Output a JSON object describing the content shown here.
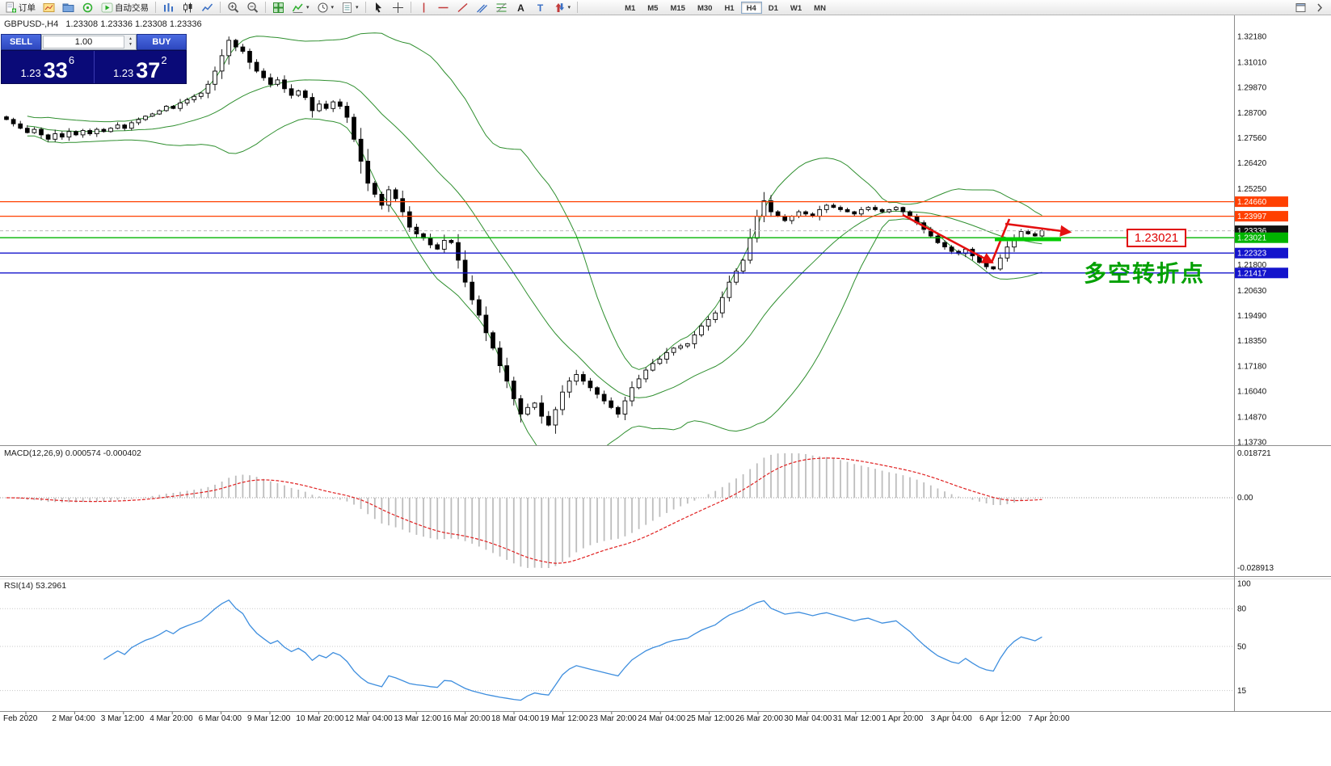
{
  "toolbar": {
    "items": [
      {
        "name": "new-order",
        "label": "订单"
      },
      {
        "name": "chart-wizard"
      },
      {
        "name": "profiles"
      },
      {
        "name": "alerts"
      },
      {
        "name": "autotrading",
        "label": "自动交易"
      },
      {
        "sep": true
      },
      {
        "name": "bar-chart"
      },
      {
        "name": "candlestick-chart"
      },
      {
        "name": "line-chart"
      },
      {
        "sep": true
      },
      {
        "name": "zoom-in"
      },
      {
        "name": "zoom-out"
      },
      {
        "sep": true
      },
      {
        "name": "tile-windows"
      },
      {
        "name": "indicators",
        "dropdown": true
      },
      {
        "name": "periods",
        "dropdown": true
      },
      {
        "name": "templates",
        "dropdown": true
      },
      {
        "sep": true
      },
      {
        "name": "cursor"
      },
      {
        "name": "crosshair"
      },
      {
        "sep": true
      },
      {
        "name": "vertical-line"
      },
      {
        "name": "horizontal-line"
      },
      {
        "name": "trendline"
      },
      {
        "name": "equidistant-channel"
      },
      {
        "name": "fibonacci"
      },
      {
        "name": "text"
      },
      {
        "name": "text-label"
      },
      {
        "name": "arrow-tools",
        "dropdown": true
      },
      {
        "sep": true
      }
    ],
    "timeframes": [
      "M1",
      "M5",
      "M15",
      "M30",
      "H1",
      "H4",
      "D1",
      "W1",
      "MN"
    ],
    "active_timeframe": "H4"
  },
  "chart_header": "GBPUSD-,H4   1.23308 1.23336 1.23308 1.23336",
  "trade_panel": {
    "sell_label": "SELL",
    "buy_label": "BUY",
    "volume": "1.00",
    "sell_price": {
      "prefix": "1.23",
      "big": "33",
      "sup": "6"
    },
    "buy_price": {
      "prefix": "1.23",
      "big": "37",
      "sup": "2"
    }
  },
  "annotations": {
    "price_label": "1.23021",
    "turning_point": "多空转折点"
  },
  "macd_label": "MACD(12,26,9) 0.000574 -0.000402",
  "rsi_label": "RSI(14) 53.2961",
  "colors": {
    "accent_blue": "#3556d4",
    "panel_navy": "#0a0a78",
    "level_orange": "#ff4000",
    "level_green": "#00b400",
    "level_blue": "#1414cc",
    "current_black": "#111111",
    "bollinger": "#2f8f2f",
    "macd_hist": "#bdbdbd",
    "macd_signal": "#e02020",
    "rsi_line": "#3e8ede",
    "annotation_red": "#e41010",
    "annotation_green": "#00cc00",
    "cn_text_green": "#00a000"
  },
  "chart_data": {
    "type": "candlestick",
    "symbol": "GBPUSD-",
    "timeframe": "H4",
    "ohlc_current": {
      "open": "1.23308",
      "high": "1.23336",
      "low": "1.23308",
      "close": "1.23336"
    },
    "price_max": 1.3218,
    "price_min": 1.1373,
    "closes": [
      1.284,
      1.282,
      1.28,
      1.278,
      1.2795,
      1.277,
      1.275,
      1.2775,
      1.276,
      1.2785,
      1.277,
      1.279,
      1.2775,
      1.2795,
      1.2785,
      1.28,
      1.2815,
      1.28,
      1.2825,
      1.284,
      1.2855,
      1.2865,
      1.288,
      1.29,
      1.289,
      1.2915,
      1.293,
      1.2945,
      1.296,
      1.3,
      1.306,
      1.313,
      1.32,
      1.317,
      1.315,
      1.31,
      1.306,
      1.303,
      1.3,
      1.302,
      1.298,
      1.295,
      1.297,
      1.294,
      1.288,
      1.291,
      1.289,
      1.292,
      1.29,
      1.285,
      1.275,
      1.265,
      1.255,
      1.25,
      1.245,
      1.252,
      1.248,
      1.242,
      1.235,
      1.232,
      1.23,
      1.227,
      1.225,
      1.229,
      1.228,
      1.22,
      1.21,
      1.202,
      1.195,
      1.187,
      1.18,
      1.172,
      1.165,
      1.157,
      1.15,
      1.153,
      1.155,
      1.149,
      1.145,
      1.152,
      1.16,
      1.165,
      1.168,
      1.165,
      1.162,
      1.159,
      1.156,
      1.153,
      1.15,
      1.156,
      1.162,
      1.166,
      1.17,
      1.173,
      1.175,
      1.178,
      1.18,
      1.181,
      1.182,
      1.186,
      1.19,
      1.193,
      1.196,
      1.203,
      1.21,
      1.215,
      1.22,
      1.23,
      1.24,
      1.247,
      1.242,
      1.24,
      1.238,
      1.24,
      1.242,
      1.241,
      1.24,
      1.243,
      1.245,
      1.244,
      1.243,
      1.242,
      1.241,
      1.243,
      1.244,
      1.243,
      1.242,
      1.243,
      1.244,
      1.242,
      1.24,
      1.237,
      1.234,
      1.231,
      1.228,
      1.226,
      1.224,
      1.223,
      1.225,
      1.222,
      1.219,
      1.217,
      1.216,
      1.221,
      1.226,
      1.23,
      1.233,
      1.232,
      1.231,
      1.23336
    ],
    "bollinger": {
      "period": 20,
      "deviation": 2
    },
    "price_axis_labels": [
      "1.32180",
      "1.31010",
      "1.29870",
      "1.28700",
      "1.27560",
      "1.26420",
      "1.25250",
      "1.21800",
      "1.20630",
      "1.19490",
      "1.18350",
      "1.17180",
      "1.16040",
      "1.14870",
      "1.13730"
    ],
    "levels": [
      {
        "price": 1.2466,
        "label": "1.24660",
        "color": "#ff4000",
        "type": "resistance"
      },
      {
        "price": 1.23997,
        "label": "1.23997",
        "color": "#ff4000",
        "type": "resistance"
      },
      {
        "price": 1.23336,
        "label": "1.23336",
        "color": "#111111",
        "type": "current"
      },
      {
        "price": 1.23021,
        "label": "1.23021",
        "color": "#00b400",
        "type": "key"
      },
      {
        "price": 1.22323,
        "label": "1.22323",
        "color": "#1414cc",
        "type": "support"
      },
      {
        "price": 1.21417,
        "label": "1.21417",
        "color": "#1414cc",
        "type": "support"
      }
    ],
    "macd": {
      "params": "12,26,9",
      "value": "0.000574",
      "signal": "-0.000402",
      "axis": [
        "0.018721",
        "0.00",
        "-0.028913"
      ]
    },
    "rsi": {
      "period": 14,
      "value": "53.2961",
      "axis": [
        100,
        80,
        50,
        15
      ]
    },
    "time_labels": [
      "Feb 2020",
      "2 Mar 04:00",
      "3 Mar 12:00",
      "4 Mar 20:00",
      "6 Mar 04:00",
      "9 Mar 12:00",
      "10 Mar 20:00",
      "12 Mar 04:00",
      "13 Mar 12:00",
      "16 Mar 20:00",
      "18 Mar 04:00",
      "19 Mar 12:00",
      "23 Mar 20:00",
      "24 Mar 04:00",
      "25 Mar 12:00",
      "26 Mar 20:00",
      "30 Mar 04:00",
      "31 Mar 12:00",
      "1 Apr 20:00",
      "3 Apr 04:00",
      "6 Apr 12:00",
      "7 Apr 20:00"
    ]
  }
}
